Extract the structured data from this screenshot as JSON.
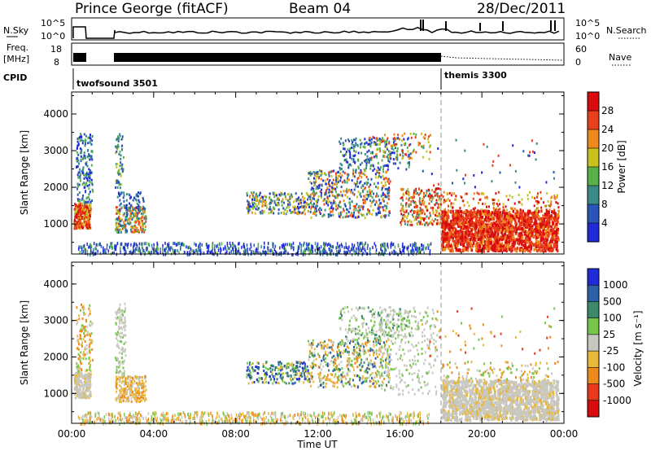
{
  "header": {
    "station": "Prince George (fitACF)",
    "beam": "Beam 04",
    "date": "28/Dec/2011"
  },
  "status_panels": {
    "nsky": {
      "label": "N.Sky",
      "ticks": [
        "10^5",
        "10^0"
      ]
    },
    "nsearch": {
      "label": "N.Search",
      "ticks": [
        "10^5",
        "10^0"
      ]
    },
    "freq": {
      "label": "Freq.",
      "unit": "[MHz]",
      "ticks": [
        "18",
        "8"
      ]
    },
    "nave": {
      "label": "Nave",
      "ticks": [
        "60",
        "0"
      ]
    },
    "cpid": {
      "label": "CPID",
      "programs": [
        {
          "name": "twofsound 3501",
          "start_hour": 0
        },
        {
          "name": "themis 3300",
          "start_hour": 18
        }
      ]
    }
  },
  "chart_data": [
    {
      "type": "heatmap",
      "name": "power",
      "ylabel": "Slant Range [km]",
      "ylim": [
        180,
        4600
      ],
      "yticks": [
        "1000",
        "2000",
        "3000",
        "4000"
      ],
      "xlim": [
        0,
        24
      ],
      "colorbar": {
        "label": "Power [dB]",
        "levels": [
          "4",
          "8",
          "12",
          "16",
          "20",
          "24",
          "28"
        ],
        "colors": [
          "#1f2bd6",
          "#2a55b8",
          "#3a8a8a",
          "#57b048",
          "#c8c21e",
          "#ee8a1c",
          "#e8401a",
          "#d80c0c"
        ]
      },
      "scatter_regions": [
        {
          "hours": [
            0.1,
            0.9
          ],
          "range_km": [
            900,
            1600
          ],
          "level": "20-28"
        },
        {
          "hours": [
            0.2,
            1.0
          ],
          "range_km": [
            1600,
            3500
          ],
          "level": "4-12"
        },
        {
          "hours": [
            2.1,
            3.6
          ],
          "range_km": [
            800,
            1500
          ],
          "level": "12-24"
        },
        {
          "hours": [
            8.5,
            11.5
          ],
          "range_km": [
            1300,
            1900
          ],
          "level": "8-20"
        },
        {
          "hours": [
            11.5,
            15.5
          ],
          "range_km": [
            1200,
            2500
          ],
          "level": "8-20"
        },
        {
          "hours": [
            13,
            16.5
          ],
          "range_km": [
            2500,
            3400
          ],
          "level": "4-12"
        },
        {
          "hours": [
            16,
            18
          ],
          "range_km": [
            1000,
            2000
          ],
          "level": "16-28"
        },
        {
          "hours": [
            18,
            23.7
          ],
          "range_km": [
            300,
            1400
          ],
          "level": "24-28"
        }
      ]
    },
    {
      "type": "heatmap",
      "name": "velocity",
      "ylabel": "Slant Range [km]",
      "ylim": [
        180,
        4600
      ],
      "yticks": [
        "1000",
        "2000",
        "3000",
        "4000"
      ],
      "xlim": [
        0,
        24
      ],
      "xticks": [
        "00:00",
        "04:00",
        "08:00",
        "12:00",
        "16:00",
        "20:00",
        "00:00"
      ],
      "xlabel": "Time UT",
      "colorbar": {
        "label": "Velocity [m s⁻¹]",
        "levels": [
          "1000",
          "500",
          "100",
          "25",
          "-25",
          "-100",
          "-500",
          "-1000"
        ],
        "colors": [
          "#1f2bd6",
          "#2d5fa8",
          "#3c8a6a",
          "#77c84a",
          "#c8c8c0",
          "#e8b83a",
          "#ee8a1c",
          "#e83a1a",
          "#d80c0c"
        ]
      },
      "scatter_regions": [
        {
          "hours": [
            0.1,
            0.9
          ],
          "range_km": [
            900,
            1600
          ],
          "level": "ground (-25 to 25)"
        },
        {
          "hours": [
            2.1,
            3.6
          ],
          "range_km": [
            800,
            1500
          ],
          "level": "-100 to -25"
        },
        {
          "hours": [
            8.5,
            11.5
          ],
          "range_km": [
            1300,
            1900
          ],
          "level": "100-500"
        },
        {
          "hours": [
            11.5,
            15.5
          ],
          "range_km": [
            1200,
            2500
          ],
          "level": "-100 to 100"
        },
        {
          "hours": [
            18,
            23.7
          ],
          "range_km": [
            300,
            1400
          ],
          "level": "ground (-25 to 25)"
        }
      ]
    }
  ]
}
